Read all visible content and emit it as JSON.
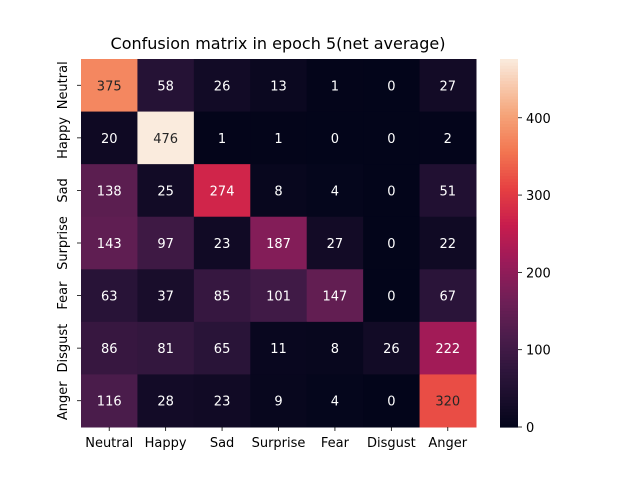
{
  "chart_data": {
    "type": "heatmap",
    "title": "Confusion matrix in epoch 5(net average)",
    "xlabel": "",
    "ylabel": "",
    "x_categories": [
      "Neutral",
      "Happy",
      "Sad",
      "Surprise",
      "Fear",
      "Disgust",
      "Anger"
    ],
    "y_categories": [
      "Neutral",
      "Happy",
      "Sad",
      "Surprise",
      "Fear",
      "Disgust",
      "Anger"
    ],
    "values": [
      [
        375,
        58,
        26,
        13,
        1,
        0,
        27
      ],
      [
        20,
        476,
        1,
        1,
        0,
        0,
        2
      ],
      [
        138,
        25,
        274,
        8,
        4,
        0,
        51
      ],
      [
        143,
        97,
        23,
        187,
        27,
        0,
        22
      ],
      [
        63,
        37,
        85,
        101,
        147,
        0,
        67
      ],
      [
        86,
        81,
        65,
        11,
        8,
        26,
        222
      ],
      [
        116,
        28,
        23,
        9,
        4,
        0,
        320
      ]
    ],
    "colorbar": {
      "ticks": [
        0,
        100,
        200,
        300,
        400
      ],
      "tick_labels": [
        "0",
        "100",
        "200",
        "300",
        "400"
      ],
      "range": [
        0,
        476
      ]
    },
    "colormap": "rocket"
  }
}
